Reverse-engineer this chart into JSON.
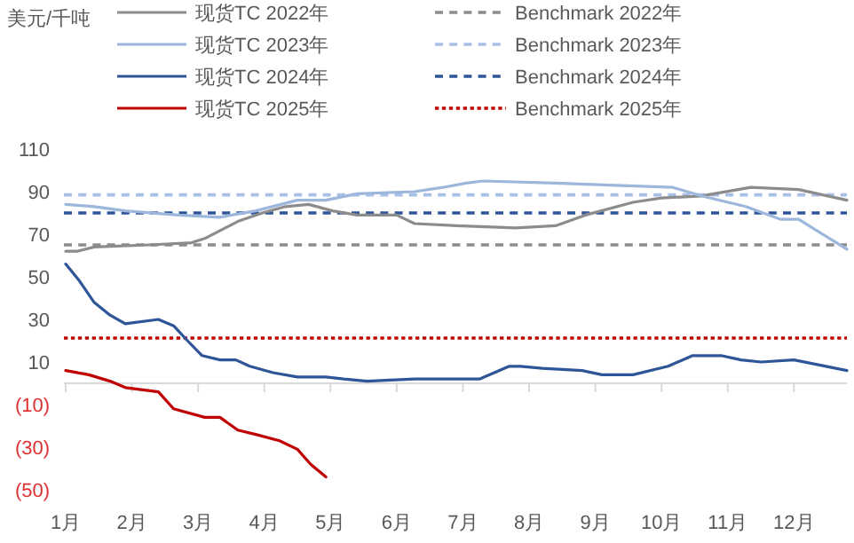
{
  "chart_data": {
    "type": "line",
    "annotations": [
      "美元/千吨"
    ],
    "legend": "top",
    "grid": false,
    "line_style": "solid",
    "xlim": [
      1,
      12.8
    ],
    "xticks": [
      {
        "value": 1,
        "label": "1月"
      },
      {
        "value": 2,
        "label": "2月"
      },
      {
        "value": 3,
        "label": "3月"
      },
      {
        "value": 4,
        "label": "4月"
      },
      {
        "value": 5,
        "label": "5月"
      },
      {
        "value": 6,
        "label": "6月"
      },
      {
        "value": 7,
        "label": "7月"
      },
      {
        "value": 8,
        "label": "8月"
      },
      {
        "value": 9,
        "label": "9月"
      },
      {
        "value": 10,
        "label": "10月"
      },
      {
        "value": 11,
        "label": "11月"
      },
      {
        "value": 12,
        "label": "12月"
      }
    ],
    "ylim": [
      -50,
      110
    ],
    "yticks": [
      {
        "value": -50,
        "label": "(50)"
      },
      {
        "value": -30,
        "label": "(30)"
      },
      {
        "value": -10,
        "label": "(10)"
      },
      10,
      30,
      50,
      70,
      90,
      110
    ],
    "series": [
      {
        "name": "现货TC 2022年",
        "color": "#8c8c8c",
        "x": [
          1,
          1.17,
          1.43,
          2.26,
          2.9,
          3.1,
          3.6,
          3.97,
          4.32,
          4.67,
          5.03,
          5.4,
          6,
          6.27,
          6.9,
          7.8,
          8.4,
          8.85,
          9.57,
          10,
          10.6,
          11.35,
          12.07,
          12.8
        ],
        "values": [
          62,
          62,
          64,
          65,
          66,
          68,
          76,
          80,
          83,
          84,
          81,
          79,
          79,
          75,
          74,
          73,
          74,
          79,
          85,
          87,
          88,
          92,
          91,
          86
        ]
      },
      {
        "name": "现货TC 2023年",
        "color": "#9db6dc",
        "x": [
          1,
          1.43,
          1.9,
          2.7,
          3.33,
          3.87,
          4.5,
          4.93,
          5.4,
          6.27,
          6.7,
          7.05,
          7.3,
          8.4,
          9.3,
          10.17,
          10.6,
          11.27,
          11.8,
          12.07,
          12.8
        ],
        "values": [
          84,
          83,
          81,
          79,
          78,
          81,
          86,
          86,
          89,
          90,
          92,
          94,
          95,
          94,
          93,
          92,
          88,
          83,
          77,
          77,
          63
        ]
      },
      {
        "name": "现货TC 2024年",
        "color": "#2e5597",
        "x": [
          1,
          1.21,
          1.43,
          1.67,
          1.9,
          2.4,
          2.63,
          2.84,
          3.06,
          3.33,
          3.57,
          3.78,
          4.13,
          4.5,
          4.93,
          5.2,
          5.55,
          6.27,
          7.25,
          7.7,
          7.87,
          8.2,
          8.8,
          9.1,
          9.57,
          10.1,
          10.47,
          10.9,
          11.2,
          11.5,
          12,
          12.8
        ],
        "values": [
          56,
          48,
          38,
          32,
          28,
          30,
          27,
          20,
          13,
          11,
          11,
          8,
          5,
          3,
          3,
          2,
          1,
          2,
          2,
          8,
          8,
          7,
          6,
          4,
          4,
          8,
          13,
          13,
          11,
          10,
          11,
          6
        ]
      },
      {
        "name": "现货TC 2025年",
        "color": "#c00000",
        "x": [
          1,
          1.35,
          1.67,
          1.9,
          2.4,
          2.63,
          3.1,
          3.33,
          3.6,
          3.87,
          4.23,
          4.5,
          4.7,
          4.93
        ],
        "values": [
          6,
          4,
          1,
          -2,
          -4,
          -12,
          -16,
          -16,
          -22,
          -24,
          -27,
          -31,
          -38,
          -44
        ]
      }
    ],
    "ref_lines": [
      {
        "axis": "y",
        "value": 65,
        "label": "Benchmark 2022年",
        "color": "#8c8c8c",
        "line_style": "dashed"
      },
      {
        "axis": "y",
        "value": 88.5,
        "label": "Benchmark 2023年",
        "color": "#a9c0e6",
        "line_style": "dashed"
      },
      {
        "axis": "y",
        "value": 80,
        "label": "Benchmark 2024年",
        "color": "#2e5597",
        "line_style": "dashed"
      },
      {
        "axis": "y",
        "value": 21.25,
        "label": "Benchmark 2025年",
        "color": "#c00000",
        "line_style": "dotted"
      }
    ]
  }
}
